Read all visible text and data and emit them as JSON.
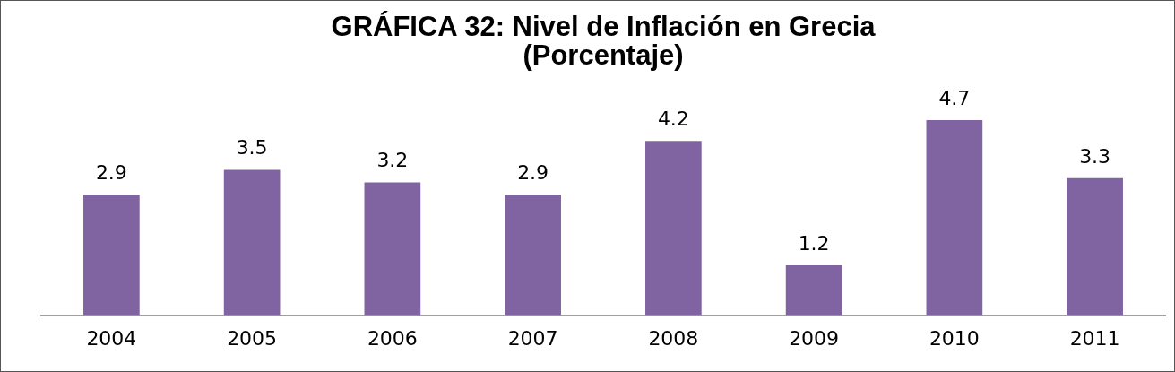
{
  "chart_data": {
    "type": "bar",
    "title": "GRÁFICA 32: Nivel de Inflación en Grecia\n(Porcentaje)",
    "categories": [
      "2004",
      "2005",
      "2006",
      "2007",
      "2008",
      "2009",
      "2010",
      "2011"
    ],
    "values": [
      2.9,
      3.5,
      3.2,
      2.9,
      4.2,
      1.2,
      4.7,
      3.3
    ],
    "color": "#8064a2",
    "data_labels": true,
    "grid": false,
    "legend": false
  }
}
